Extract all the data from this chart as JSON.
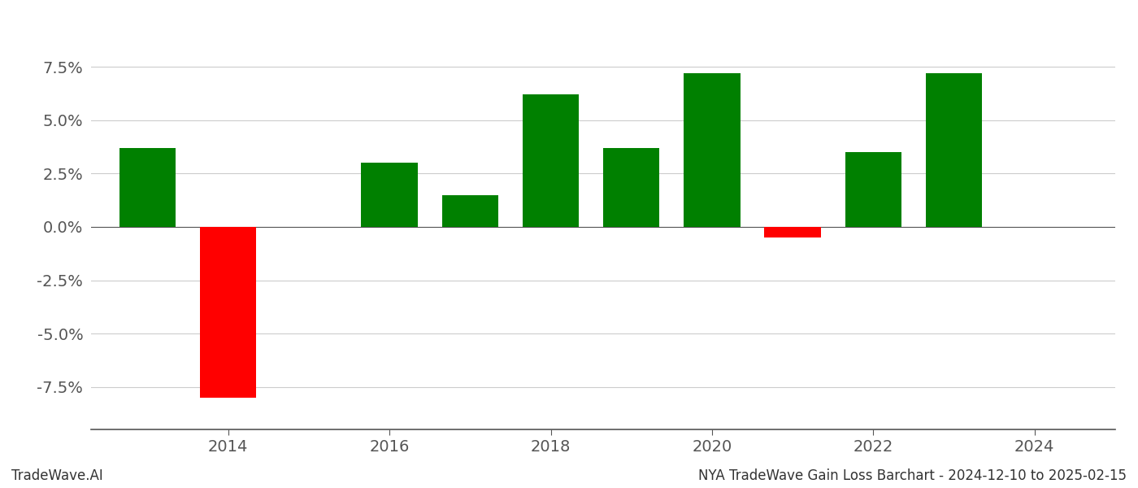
{
  "years": [
    2013,
    2014,
    2016,
    2017,
    2018,
    2019,
    2020,
    2021,
    2022,
    2023
  ],
  "values": [
    3.7,
    -8.0,
    3.0,
    1.5,
    6.2,
    3.7,
    7.2,
    -0.5,
    3.5,
    7.2
  ],
  "colors": [
    "#008000",
    "#ff0000",
    "#008000",
    "#008000",
    "#008000",
    "#008000",
    "#008000",
    "#ff0000",
    "#008000",
    "#008000"
  ],
  "ylim": [
    -9.5,
    9.5
  ],
  "yticks": [
    -7.5,
    -5.0,
    -2.5,
    0.0,
    2.5,
    5.0,
    7.5
  ],
  "xlim": [
    2012.3,
    2025.0
  ],
  "xticks": [
    2014,
    2016,
    2018,
    2020,
    2022,
    2024
  ],
  "bar_width": 0.7,
  "title_left": "TradeWave.AI",
  "title_right": "NYA TradeWave Gain Loss Barchart - 2024-12-10 to 2025-02-15",
  "grid_color": "#cccccc",
  "background_color": "#ffffff",
  "font_size_ticks": 14,
  "font_size_footer": 12
}
